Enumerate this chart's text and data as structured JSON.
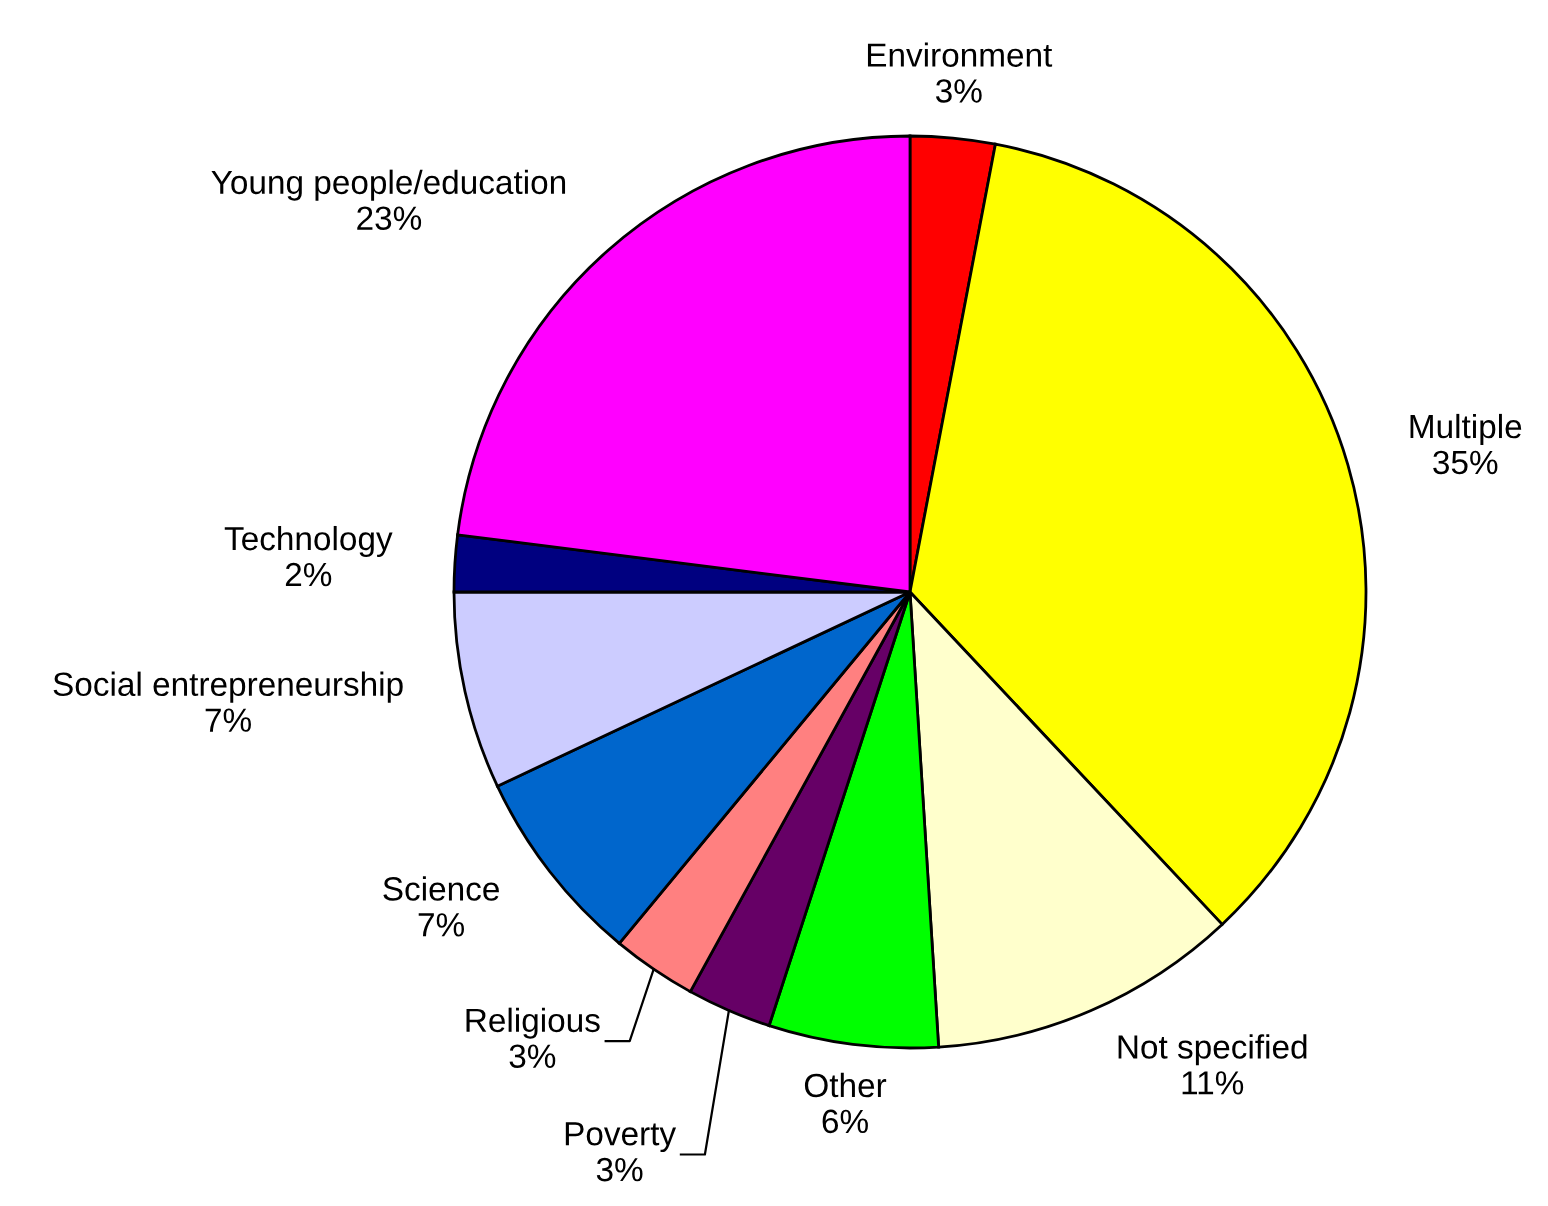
{
  "chart_data": {
    "type": "pie",
    "categories": [
      "Environment",
      "Multiple",
      "Not specified",
      "Other",
      "Poverty",
      "Religious",
      "Science",
      "Social entrepreneurship",
      "Technology",
      "Young people/education"
    ],
    "values": [
      3,
      35,
      11,
      6,
      3,
      3,
      7,
      7,
      2,
      23
    ],
    "colors": [
      "#ff0000",
      "#ffff00",
      "#ffffcc",
      "#00ff00",
      "#660066",
      "#ff8080",
      "#0066cc",
      "#ccccff",
      "#000080",
      "#ff00ff"
    ],
    "value_labels": [
      "3%",
      "35%",
      "11%",
      "6%",
      "3%",
      "3%",
      "7%",
      "7%",
      "2%",
      "23%"
    ]
  }
}
